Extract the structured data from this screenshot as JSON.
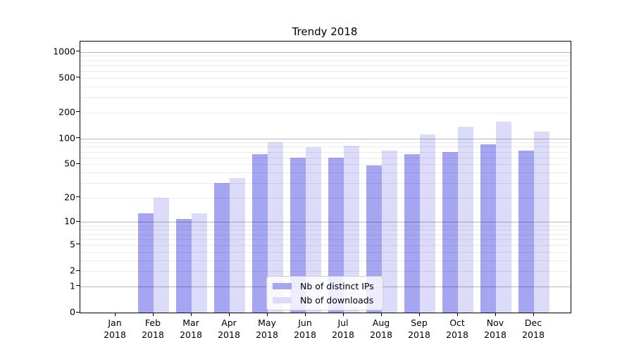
{
  "chart_data": {
    "type": "bar",
    "title": "Trendy 2018",
    "categories": [
      "Jan",
      "Feb",
      "Mar",
      "Apr",
      "May",
      "Jun",
      "Jul",
      "Aug",
      "Sep",
      "Oct",
      "Nov",
      "Dec"
    ],
    "x_year_label": "2018",
    "series": [
      {
        "name": "Nb of distinct IPs",
        "color": "#a5a5f2",
        "values": [
          0,
          13,
          11,
          30,
          65,
          60,
          60,
          48,
          65,
          70,
          86,
          72
        ]
      },
      {
        "name": "Nb of downloads",
        "color": "#dcdcfa",
        "values": [
          0,
          20,
          13,
          34,
          90,
          80,
          82,
          72,
          112,
          138,
          155,
          120
        ]
      }
    ],
    "y_scale": "log10(value+1)",
    "y_ticks": [
      0,
      1,
      2,
      5,
      10,
      20,
      50,
      100,
      200,
      500,
      1000
    ],
    "ylim": [
      0,
      1300
    ],
    "grid": true,
    "legend_position": "lower center"
  },
  "colors": {
    "bar_distinct_ips": "#a5a5f2",
    "bar_downloads": "#dcdcfa",
    "major_gridline": "rgba(0,0,0,0.28)",
    "minor_gridline": "rgba(0,0,0,0.08)",
    "axis": "#000000",
    "background": "#ffffff"
  }
}
